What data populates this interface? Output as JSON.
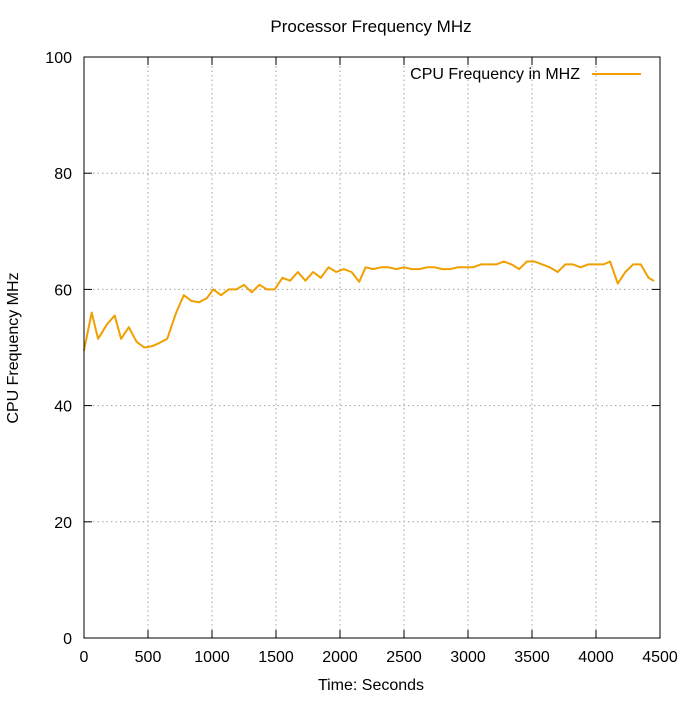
{
  "chart_data": {
    "type": "line",
    "title": "Processor Frequency MHz",
    "xlabel": "Time: Seconds",
    "ylabel": "CPU Frequency MHz",
    "xlim": [
      0,
      4500
    ],
    "ylim": [
      0,
      100
    ],
    "xticks": [
      0,
      500,
      1000,
      1500,
      2000,
      2500,
      3000,
      3500,
      4000,
      4500
    ],
    "yticks": [
      0,
      20,
      40,
      60,
      80,
      100
    ],
    "grid": true,
    "legend_position": "top-right",
    "series": [
      {
        "name": "CPU Frequency in MHZ",
        "color": "#f0a000",
        "x": [
          0,
          60,
          110,
          180,
          240,
          290,
          350,
          410,
          470,
          530,
          590,
          650,
          720,
          780,
          840,
          900,
          960,
          1010,
          1070,
          1130,
          1190,
          1250,
          1310,
          1370,
          1430,
          1490,
          1550,
          1610,
          1670,
          1730,
          1790,
          1850,
          1910,
          1970,
          2030,
          2090,
          2150,
          2200,
          2260,
          2320,
          2380,
          2440,
          2500,
          2560,
          2620,
          2680,
          2740,
          2800,
          2860,
          2920,
          2980,
          3040,
          3100,
          3160,
          3220,
          3280,
          3340,
          3400,
          3460,
          3520,
          3580,
          3640,
          3700,
          3760,
          3820,
          3880,
          3940,
          4000,
          4060,
          4110,
          4170,
          4230,
          4290,
          4350,
          4410,
          4450
        ],
        "values": [
          49.5,
          56.0,
          51.5,
          54.0,
          55.5,
          51.5,
          53.5,
          51.0,
          50.0,
          50.2,
          50.8,
          51.5,
          56.0,
          59.0,
          58.0,
          57.8,
          58.5,
          60.0,
          59.0,
          60.0,
          60.0,
          60.8,
          59.5,
          60.8,
          60.0,
          60.0,
          62.0,
          61.5,
          63.0,
          61.5,
          63.0,
          62.0,
          63.8,
          63.0,
          63.5,
          63.0,
          61.3,
          63.8,
          63.5,
          63.8,
          63.8,
          63.5,
          63.8,
          63.5,
          63.5,
          63.8,
          63.8,
          63.5,
          63.5,
          63.8,
          63.8,
          63.8,
          64.3,
          64.3,
          64.3,
          64.8,
          64.3,
          63.5,
          64.8,
          64.8,
          64.3,
          63.8,
          63.0,
          64.3,
          64.3,
          63.8,
          64.3,
          64.3,
          64.3,
          64.8,
          61.0,
          63.0,
          64.3,
          64.3,
          62.0,
          61.5
        ]
      }
    ]
  }
}
